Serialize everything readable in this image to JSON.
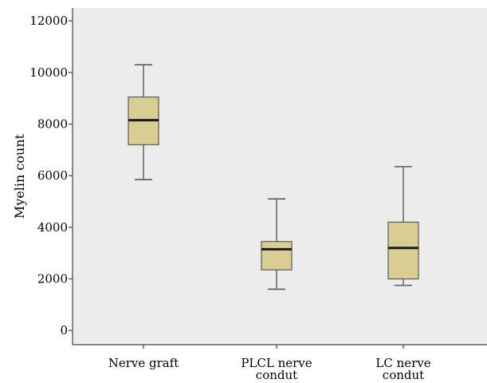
{
  "chart_data": {
    "type": "boxplot",
    "title": "",
    "xlabel": "",
    "ylabel": "Myelin count",
    "ylim": [
      -550,
      12500
    ],
    "y_ticks": [
      "0",
      "2000",
      "4000",
      "6000",
      "8000",
      "10000",
      "12000"
    ],
    "y_tick_values": [
      0,
      2000,
      4000,
      6000,
      8000,
      10000,
      12000
    ],
    "grid": false,
    "legend": "none",
    "categories": [
      {
        "line1": "Nerve graft",
        "line2": ""
      },
      {
        "line1": "PLCL nerve",
        "line2": "condut"
      },
      {
        "line1": "LC nerve",
        "line2": "condut"
      }
    ],
    "boxes": [
      {
        "min": 5850,
        "q1": 7200,
        "median": 8150,
        "q3": 9050,
        "max": 10300
      },
      {
        "min": 1600,
        "q1": 2350,
        "median": 3150,
        "q3": 3450,
        "max": 5100
      },
      {
        "min": 1750,
        "q1": 2000,
        "median": 3200,
        "q3": 4200,
        "max": 6350
      }
    ],
    "colors": {
      "plot_background": "#ececec",
      "box_fill": "#d9cd93",
      "box_stroke": "#5a5a5a",
      "median": "#1a1a1a",
      "axis": "#444444"
    }
  }
}
